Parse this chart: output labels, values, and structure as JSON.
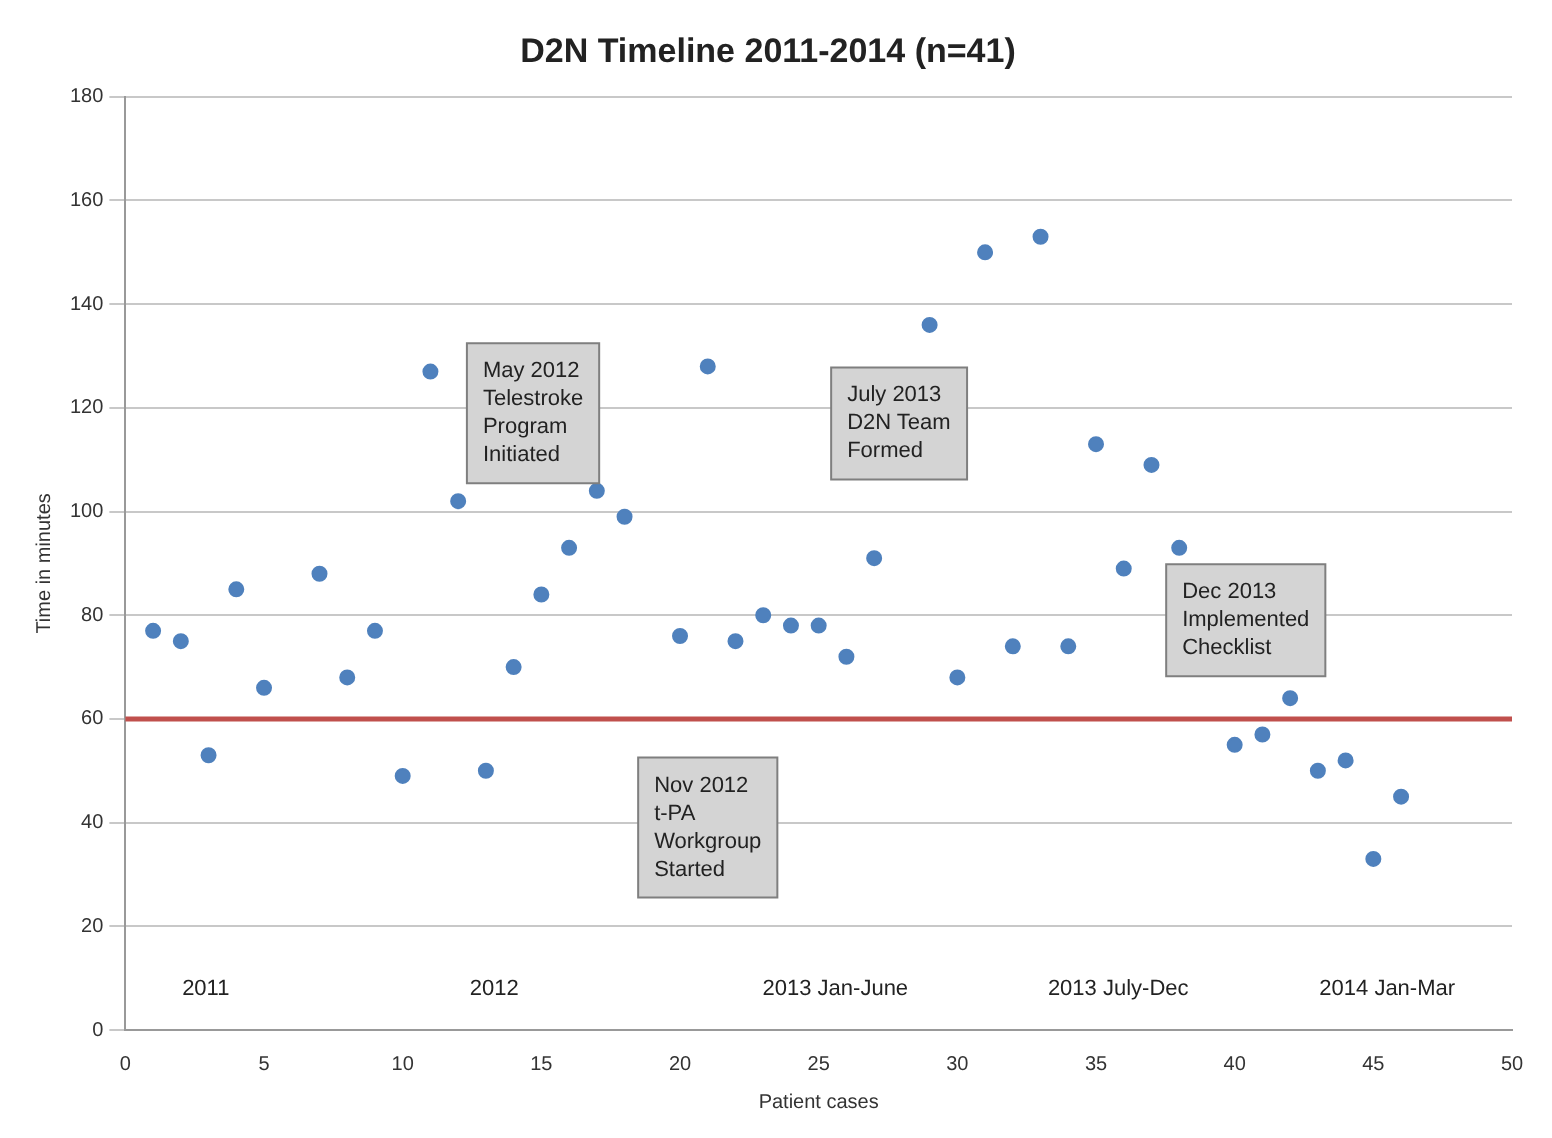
{
  "chart_data": {
    "type": "scatter",
    "title": "D2N Timeline 2011-2014 (n=41)",
    "xlabel": "Patient cases",
    "ylabel": "Time in minutes",
    "x": [
      1,
      2,
      3,
      4,
      5,
      7,
      8,
      9,
      10,
      11,
      12,
      13,
      14,
      15,
      16,
      17,
      18,
      20,
      21,
      22,
      23,
      24,
      25,
      26,
      27,
      29,
      30,
      31,
      32,
      33,
      34,
      35,
      36,
      37,
      38,
      40,
      41,
      42,
      43,
      44,
      45,
      46
    ],
    "series": [
      {
        "color": "#4f81bd",
        "values": [
          77,
          75,
          53,
          85,
          66,
          88,
          68,
          77,
          49,
          127,
          102,
          50,
          70,
          84,
          93,
          104,
          99,
          76,
          128,
          75,
          80,
          78,
          78,
          72,
          91,
          136,
          68,
          150,
          74,
          153,
          74,
          113,
          89,
          109,
          93,
          55,
          57,
          64,
          50,
          52,
          33,
          45
        ]
      }
    ],
    "xlim": [
      0,
      50
    ],
    "xticks": [
      0,
      5,
      10,
      15,
      20,
      25,
      30,
      35,
      40,
      45,
      50
    ],
    "ylim": [
      0,
      180
    ],
    "yticks": [
      0,
      20,
      40,
      60,
      80,
      100,
      120,
      140,
      160,
      180
    ],
    "grid": "y",
    "marker": "circle",
    "legend": false,
    "ref_lines": [
      {
        "axis": "y",
        "value": 60,
        "color": "#c0504d"
      }
    ],
    "annotations": [
      "May 2012\nTelestroke\nProgram\nInitiated",
      "July 2013\nD2N Team\nFormed",
      "Dec 2013\nImplemented\nChecklist",
      "Nov 2012\nt-PA\nWorkgroup\nStarted",
      "2011",
      "2012",
      "2013 Jan-June",
      "2013 July-Dec",
      "2014 Jan-Mar"
    ]
  }
}
